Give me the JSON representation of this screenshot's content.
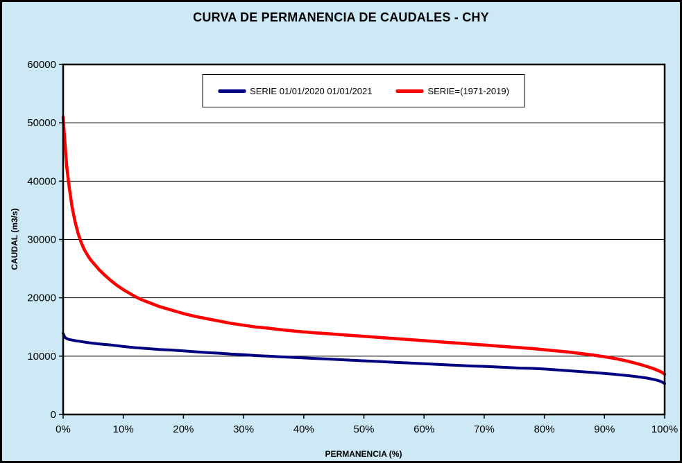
{
  "title": "CURVA DE PERMANENCIA DE CAUDALES - CHY",
  "colors": {
    "background": "#CDE9F6",
    "plot_background": "#FFFFFF",
    "border": "#000000",
    "grid": "#000000",
    "series_blue": "#000080",
    "series_red": "#FF0000"
  },
  "legend": {
    "entries": [
      {
        "label": "SERIE 01/01/2020 01/01/2021",
        "color": "#000080"
      },
      {
        "label": "SERIE=(1971-2019)",
        "color": "#FF0000"
      }
    ]
  },
  "chart_data": {
    "type": "line",
    "title": "CURVA DE PERMANENCIA DE CAUDALES - CHY",
    "xlabel": "PERMANENCIA  (%)",
    "ylabel": "CAUDAL  (m3/s)",
    "xlim": [
      0,
      100
    ],
    "ylim": [
      0,
      60000
    ],
    "grid": "horizontal",
    "legend_position": "top-center",
    "x_ticks": [
      "0%",
      "10%",
      "20%",
      "30%",
      "40%",
      "50%",
      "60%",
      "70%",
      "80%",
      "90%",
      "100%"
    ],
    "x_tick_values": [
      0,
      10,
      20,
      30,
      40,
      50,
      60,
      70,
      80,
      90,
      100
    ],
    "y_ticks": [
      0,
      10000,
      20000,
      30000,
      40000,
      50000,
      60000
    ],
    "series": [
      {
        "name": "SERIE 01/01/2020 01/01/2021",
        "color": "#000080",
        "width": 4,
        "points": [
          [
            0,
            13900
          ],
          [
            0.3,
            13200
          ],
          [
            0.7,
            12950
          ],
          [
            1,
            12850
          ],
          [
            2,
            12650
          ],
          [
            3,
            12500
          ],
          [
            4,
            12350
          ],
          [
            5,
            12200
          ],
          [
            6,
            12100
          ],
          [
            8,
            11900
          ],
          [
            10,
            11650
          ],
          [
            12,
            11450
          ],
          [
            14,
            11300
          ],
          [
            16,
            11150
          ],
          [
            18,
            11050
          ],
          [
            20,
            10900
          ],
          [
            22,
            10750
          ],
          [
            24,
            10600
          ],
          [
            26,
            10500
          ],
          [
            28,
            10350
          ],
          [
            30,
            10250
          ],
          [
            32,
            10100
          ],
          [
            34,
            10000
          ],
          [
            36,
            9900
          ],
          [
            38,
            9800
          ],
          [
            40,
            9700
          ],
          [
            42,
            9600
          ],
          [
            44,
            9500
          ],
          [
            46,
            9400
          ],
          [
            48,
            9300
          ],
          [
            50,
            9200
          ],
          [
            52,
            9100
          ],
          [
            54,
            9000
          ],
          [
            56,
            8900
          ],
          [
            58,
            8800
          ],
          [
            60,
            8700
          ],
          [
            62,
            8600
          ],
          [
            64,
            8500
          ],
          [
            66,
            8400
          ],
          [
            68,
            8300
          ],
          [
            70,
            8250
          ],
          [
            72,
            8150
          ],
          [
            74,
            8050
          ],
          [
            76,
            7950
          ],
          [
            78,
            7900
          ],
          [
            80,
            7800
          ],
          [
            82,
            7650
          ],
          [
            84,
            7500
          ],
          [
            86,
            7350
          ],
          [
            88,
            7200
          ],
          [
            90,
            7050
          ],
          [
            92,
            6850
          ],
          [
            94,
            6650
          ],
          [
            96,
            6400
          ],
          [
            97,
            6250
          ],
          [
            98,
            6050
          ],
          [
            99,
            5800
          ],
          [
            99.5,
            5600
          ],
          [
            100,
            5300
          ]
        ]
      },
      {
        "name": "SERIE=(1971-2019)",
        "color": "#FF0000",
        "width": 4.5,
        "points": [
          [
            0,
            51000
          ],
          [
            0.3,
            46500
          ],
          [
            0.6,
            42500
          ],
          [
            1,
            39000
          ],
          [
            1.5,
            35500
          ],
          [
            2,
            33000
          ],
          [
            2.5,
            31000
          ],
          [
            3,
            29500
          ],
          [
            3.5,
            28300
          ],
          [
            4,
            27400
          ],
          [
            4.5,
            26600
          ],
          [
            5,
            26000
          ],
          [
            6,
            24800
          ],
          [
            7,
            23800
          ],
          [
            8,
            22900
          ],
          [
            9,
            22100
          ],
          [
            10,
            21400
          ],
          [
            11,
            20800
          ],
          [
            12,
            20200
          ],
          [
            13,
            19700
          ],
          [
            14,
            19300
          ],
          [
            15,
            18900
          ],
          [
            16,
            18500
          ],
          [
            17,
            18200
          ],
          [
            18,
            17900
          ],
          [
            19,
            17600
          ],
          [
            20,
            17300
          ],
          [
            22,
            16800
          ],
          [
            24,
            16400
          ],
          [
            26,
            16000
          ],
          [
            28,
            15600
          ],
          [
            30,
            15300
          ],
          [
            32,
            15000
          ],
          [
            34,
            14800
          ],
          [
            36,
            14550
          ],
          [
            38,
            14350
          ],
          [
            40,
            14150
          ],
          [
            42,
            14000
          ],
          [
            44,
            13850
          ],
          [
            46,
            13700
          ],
          [
            48,
            13550
          ],
          [
            50,
            13400
          ],
          [
            52,
            13250
          ],
          [
            54,
            13100
          ],
          [
            56,
            12950
          ],
          [
            58,
            12800
          ],
          [
            60,
            12650
          ],
          [
            62,
            12500
          ],
          [
            64,
            12350
          ],
          [
            66,
            12200
          ],
          [
            68,
            12050
          ],
          [
            70,
            11900
          ],
          [
            72,
            11750
          ],
          [
            74,
            11600
          ],
          [
            76,
            11450
          ],
          [
            78,
            11300
          ],
          [
            80,
            11100
          ],
          [
            82,
            10900
          ],
          [
            84,
            10700
          ],
          [
            86,
            10450
          ],
          [
            88,
            10200
          ],
          [
            90,
            9900
          ],
          [
            92,
            9550
          ],
          [
            94,
            9100
          ],
          [
            96,
            8550
          ],
          [
            97,
            8250
          ],
          [
            98,
            7900
          ],
          [
            99,
            7500
          ],
          [
            99.5,
            7250
          ],
          [
            100,
            6900
          ]
        ]
      }
    ]
  }
}
